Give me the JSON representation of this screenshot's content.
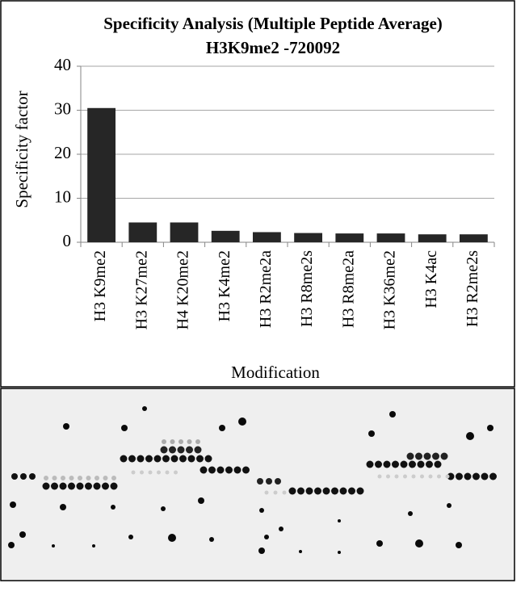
{
  "chart_data": {
    "type": "bar",
    "title": "Specificity Analysis  (Multiple Peptide Average)",
    "subtitle": "H3K9me2 -720092",
    "y_label": "Specificity factor",
    "x_label": "Modification",
    "categories": [
      "H3 K9me2",
      "H3 K27me2",
      "H4 K20me2",
      "H3 K4me2",
      "H3 R2me2a",
      "H3 R8me2s",
      "H3 R8me2a",
      "H3 K36me2",
      "H3 K4ac",
      "H3 R2me2s"
    ],
    "values": [
      30.5,
      4.5,
      4.5,
      2.6,
      2.3,
      2.1,
      2.0,
      2.0,
      1.8,
      1.8
    ],
    "color": "#262626",
    "ylim": [
      0,
      40
    ],
    "yticks": [
      0,
      10,
      20,
      30,
      40
    ],
    "grid": true
  }
}
